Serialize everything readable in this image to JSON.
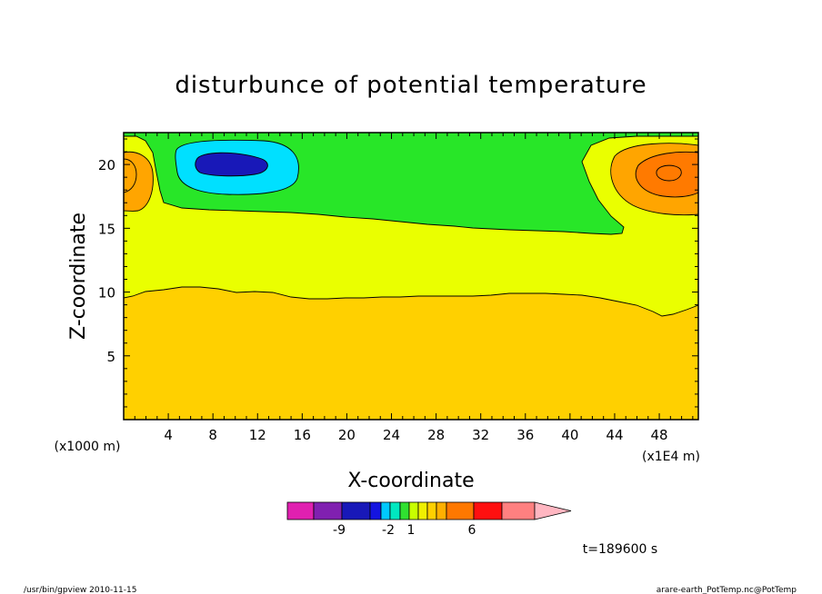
{
  "chart_data": {
    "type": "heatmap",
    "title": "disturbunce of potential temperature",
    "xlabel": "X-coordinate",
    "ylabel": "Z-coordinate",
    "x_unit": "(x1E4 m)",
    "y_unit": "(x1000 m)",
    "xlim": [
      0,
      51.5
    ],
    "ylim": [
      0,
      22.5
    ],
    "xticks": [
      4,
      8,
      12,
      16,
      20,
      24,
      28,
      32,
      36,
      40,
      44,
      48
    ],
    "yticks": [
      5,
      10,
      15,
      20
    ],
    "timestamp": "t=189600 s",
    "colorbar": {
      "colors": [
        "#e020b0",
        "#8020b0",
        "#1818b8",
        "#1414e0",
        "#00c8ff",
        "#00e8c0",
        "#30e030",
        "#c8ff00",
        "#f0f000",
        "#ffd000",
        "#ffb000",
        "#ff7800",
        "#ff1010",
        "#ff8080",
        "#ffb6c1"
      ],
      "tick_labels": [
        "-9",
        "-2",
        "1",
        "6"
      ]
    },
    "contour_colors": {
      "cold_core": "#1818b8",
      "cold": "#00e0ff",
      "cool": "#28e628",
      "neutral": "#eaff00",
      "warm": "#ffd000",
      "warmer": "#ffa500",
      "hot": "#ff7a00"
    }
  },
  "footer": {
    "left": "/usr/bin/gpview   2010-11-15",
    "right": "arare-earth_PotTemp.nc@PotTemp"
  }
}
